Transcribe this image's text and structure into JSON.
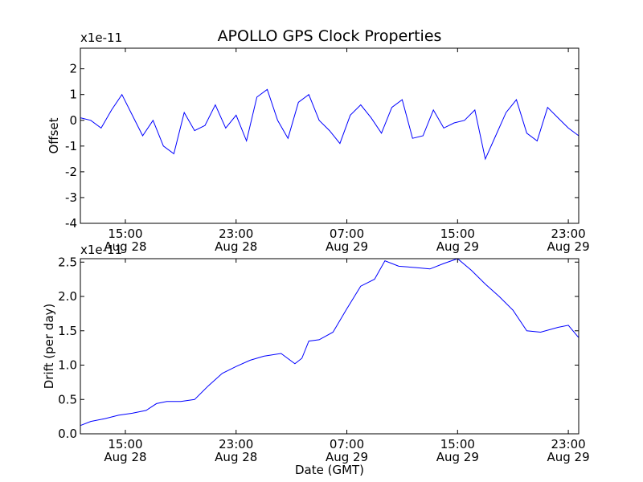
{
  "title": "APOLLO GPS Clock Properties",
  "colors": {
    "series": "#0000ff",
    "axes": "#000000",
    "background": "#ffffff"
  },
  "chart_data": [
    {
      "type": "line",
      "ylabel": "Offset",
      "xlabel": "",
      "exponent_label": "x1e-11",
      "ylim": [
        -4,
        2.8
      ],
      "xlim": [
        "Aug 28 11:45",
        "Aug 29 23:45"
      ],
      "yticks": [
        -4,
        -3,
        -2,
        -1,
        0,
        1,
        2
      ],
      "ytick_labels": [
        "-4",
        "-3",
        "-2",
        "-1",
        "0",
        "1",
        "2"
      ],
      "xticks": [
        {
          "time": "15:00",
          "date": "Aug 28"
        },
        {
          "time": "23:00",
          "date": "Aug 28"
        },
        {
          "time": "07:00",
          "date": "Aug 29"
        },
        {
          "time": "15:00",
          "date": "Aug 29"
        },
        {
          "time": "23:00",
          "date": "Aug 29"
        }
      ],
      "series": [
        {
          "x": [
            "Aug 28 11:45",
            "Aug 28 12:30",
            "Aug 28 13:15",
            "Aug 28 14:00",
            "Aug 28 14:45",
            "Aug 28 15:30",
            "Aug 28 16:15",
            "Aug 28 17:00",
            "Aug 28 17:45",
            "Aug 28 18:30",
            "Aug 28 19:15",
            "Aug 28 20:00",
            "Aug 28 20:45",
            "Aug 28 21:30",
            "Aug 28 22:15",
            "Aug 28 23:00",
            "Aug 28 23:45",
            "Aug 29 00:30",
            "Aug 29 01:15",
            "Aug 29 02:00",
            "Aug 29 02:45",
            "Aug 29 03:30",
            "Aug 29 04:15",
            "Aug 29 05:00",
            "Aug 29 05:45",
            "Aug 29 06:30",
            "Aug 29 07:15",
            "Aug 29 08:00",
            "Aug 29 08:45",
            "Aug 29 09:30",
            "Aug 29 10:15",
            "Aug 29 11:00",
            "Aug 29 11:45",
            "Aug 29 12:30",
            "Aug 29 13:15",
            "Aug 29 14:00",
            "Aug 29 14:45",
            "Aug 29 15:30",
            "Aug 29 16:15",
            "Aug 29 17:00",
            "Aug 29 17:45",
            "Aug 29 18:30",
            "Aug 29 19:15",
            "Aug 29 20:00",
            "Aug 29 20:45",
            "Aug 29 21:30",
            "Aug 29 22:15",
            "Aug 29 23:00",
            "Aug 29 23:45"
          ],
          "values": [
            0.1,
            0.0,
            -0.3,
            0.4,
            1.0,
            0.2,
            -0.6,
            0.0,
            -1.0,
            -1.3,
            0.3,
            -0.4,
            -0.2,
            0.6,
            -0.3,
            0.2,
            -0.8,
            0.9,
            1.2,
            0.0,
            -0.7,
            0.7,
            1.0,
            0.0,
            -0.4,
            -0.9,
            0.2,
            0.6,
            0.1,
            -0.5,
            0.5,
            0.8,
            -0.7,
            -0.6,
            0.4,
            -0.3,
            -0.1,
            0.0,
            0.4,
            -1.5,
            -0.6,
            0.3,
            0.8,
            -0.5,
            -0.8,
            0.5,
            0.1,
            -0.3,
            -0.6
          ]
        }
      ]
    },
    {
      "type": "line",
      "ylabel": "Drift (per day)",
      "xlabel": "Date (GMT)",
      "exponent_label": "x1e-11",
      "ylim": [
        0.0,
        2.55
      ],
      "xlim": [
        "Aug 28 11:45",
        "Aug 29 23:45"
      ],
      "yticks": [
        0.0,
        0.5,
        1.0,
        1.5,
        2.0,
        2.5
      ],
      "ytick_labels": [
        "0.0",
        "0.5",
        "1.0",
        "1.5",
        "2.0",
        "2.5"
      ],
      "xticks": [
        {
          "time": "15:00",
          "date": "Aug 28"
        },
        {
          "time": "23:00",
          "date": "Aug 28"
        },
        {
          "time": "07:00",
          "date": "Aug 29"
        },
        {
          "time": "15:00",
          "date": "Aug 29"
        },
        {
          "time": "23:00",
          "date": "Aug 29"
        }
      ],
      "series": [
        {
          "x": [
            "Aug 28 11:45",
            "Aug 28 12:30",
            "Aug 28 13:30",
            "Aug 28 14:30",
            "Aug 28 15:30",
            "Aug 28 16:30",
            "Aug 28 17:15",
            "Aug 28 18:00",
            "Aug 28 19:00",
            "Aug 28 20:00",
            "Aug 28 21:00",
            "Aug 28 22:00",
            "Aug 28 23:00",
            "Aug 29 00:00",
            "Aug 29 01:00",
            "Aug 29 02:15",
            "Aug 29 03:15",
            "Aug 29 03:45",
            "Aug 29 04:15",
            "Aug 29 05:00",
            "Aug 29 06:00",
            "Aug 29 07:00",
            "Aug 29 08:00",
            "Aug 29 09:00",
            "Aug 29 09:45",
            "Aug 29 10:45",
            "Aug 29 12:00",
            "Aug 29 13:00",
            "Aug 29 14:00",
            "Aug 29 15:00",
            "Aug 29 16:00",
            "Aug 29 17:00",
            "Aug 29 18:00",
            "Aug 29 19:00",
            "Aug 29 20:00",
            "Aug 29 21:00",
            "Aug 29 22:15",
            "Aug 29 23:00",
            "Aug 29 23:45"
          ],
          "values": [
            0.12,
            0.18,
            0.22,
            0.27,
            0.3,
            0.34,
            0.44,
            0.47,
            0.47,
            0.5,
            0.7,
            0.88,
            0.98,
            1.07,
            1.13,
            1.17,
            1.02,
            1.1,
            1.35,
            1.37,
            1.48,
            1.82,
            2.15,
            2.25,
            2.52,
            2.44,
            2.42,
            2.4,
            2.48,
            2.55,
            2.38,
            2.18,
            2.0,
            1.8,
            1.5,
            1.48,
            1.55,
            1.58,
            1.4
          ]
        }
      ]
    }
  ]
}
